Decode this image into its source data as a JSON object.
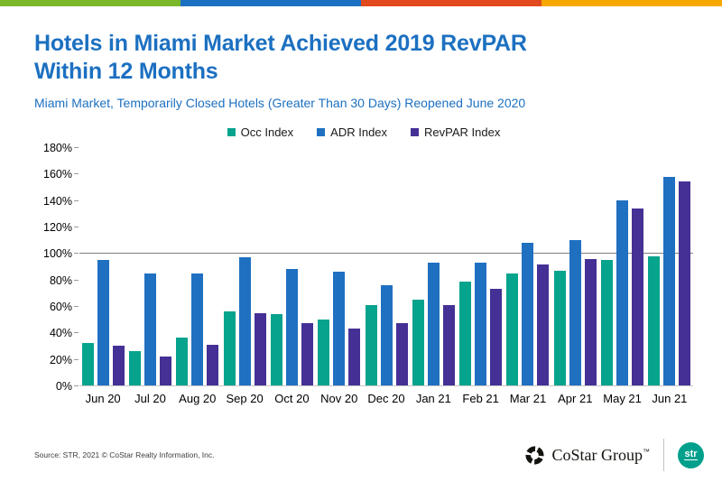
{
  "top_strip": {
    "colors": [
      "#7ab829",
      "#1c70c1",
      "#e2491c",
      "#f6a800"
    ]
  },
  "header": {
    "title_lines": [
      "Hotels in Miami Market Achieved 2019 RevPAR",
      "Within 12 Months"
    ],
    "subtitle": "Miami Market, Temporarily Closed Hotels (Greater Than 30 Days) Reopened June 2020",
    "title_color": "#1c70c1"
  },
  "chart_data": {
    "type": "bar",
    "title": "",
    "xlabel": "",
    "ylabel": "",
    "categories": [
      "Jun 20",
      "Jul 20",
      "Aug 20",
      "Sep 20",
      "Oct 20",
      "Nov 20",
      "Dec 20",
      "Jan 21",
      "Feb 21",
      "Mar 21",
      "Apr 21",
      "May 21",
      "Jun 21"
    ],
    "series": [
      {
        "name": "Occ Index",
        "color": "#06a38d",
        "values": [
          32,
          26,
          36,
          56,
          54,
          50,
          61,
          65,
          79,
          85,
          87,
          95,
          98
        ]
      },
      {
        "name": "ADR Index",
        "color": "#1f70c1",
        "values": [
          95,
          85,
          85,
          97,
          88,
          86,
          76,
          93,
          93,
          108,
          110,
          140,
          158
        ]
      },
      {
        "name": "RevPAR Index",
        "color": "#453095",
        "values": [
          30,
          22,
          31,
          55,
          47,
          43,
          47,
          61,
          73,
          92,
          96,
          134,
          155
        ]
      }
    ],
    "ylim": [
      0,
      180
    ],
    "ytick_step": 20,
    "ytick_labels": [
      "0%",
      "20%",
      "40%",
      "60%",
      "80%",
      "100%",
      "120%",
      "140%",
      "160%",
      "180%"
    ],
    "reference_line": 100,
    "legend_position": "top-center",
    "grid": false
  },
  "footer": {
    "source": "Source: STR, 2021 © CoStar Realty Information, Inc.",
    "costar_label": "CoStar Group",
    "costar_tm": "™",
    "str_label": "str",
    "str_color": "#00a08c"
  }
}
